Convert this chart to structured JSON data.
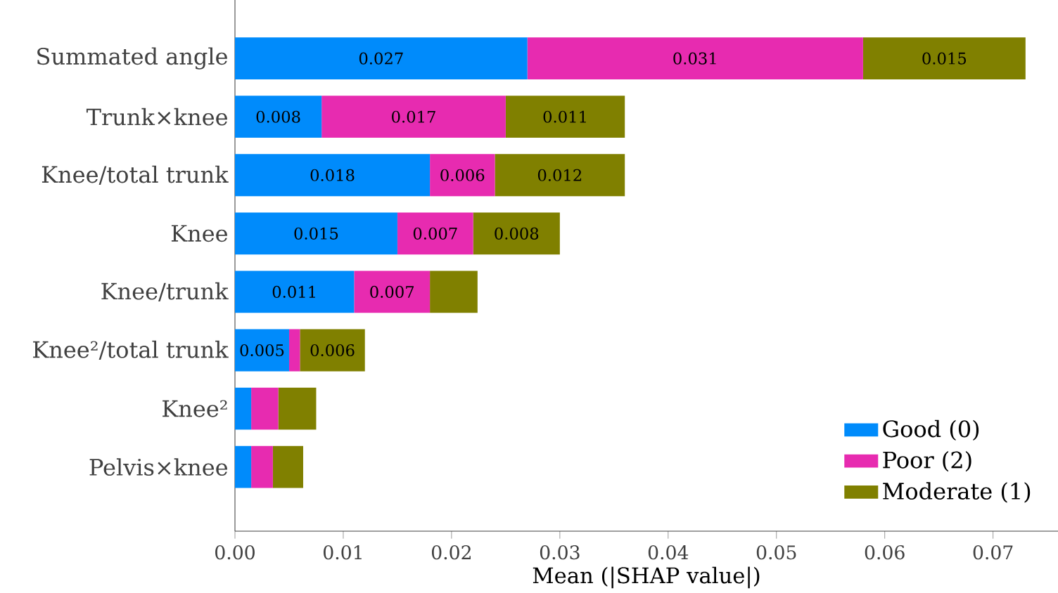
{
  "chart_data": {
    "type": "bar",
    "orientation": "horizontal",
    "stacked": true,
    "xlabel": "Mean (|SHAP value|)",
    "categories": [
      "Summated angle",
      "Trunk×knee",
      "Knee/total trunk",
      "Knee",
      "Knee/trunk",
      "Knee²/total trunk",
      "Knee²",
      "Pelvis×knee"
    ],
    "series": [
      {
        "name": "Good (0)",
        "color": "#008bfb",
        "values": [
          0.027,
          0.008,
          0.018,
          0.015,
          0.011,
          0.005,
          0.0015,
          0.0015
        ],
        "value_labels": [
          "0.027",
          "0.008",
          "0.018",
          "0.015",
          "0.011",
          "0.005",
          null,
          null
        ]
      },
      {
        "name": "Poor (2)",
        "color": "#e72bb0",
        "values": [
          0.031,
          0.017,
          0.006,
          0.007,
          0.007,
          0.001,
          0.0025,
          0.002
        ],
        "value_labels": [
          "0.031",
          "0.017",
          "0.006",
          "0.007",
          "0.007",
          null,
          null,
          null
        ]
      },
      {
        "name": "Moderate (1)",
        "color": "#808000",
        "values": [
          0.015,
          0.011,
          0.012,
          0.008,
          0.0044,
          0.006,
          0.0035,
          0.0028
        ],
        "value_labels": [
          "0.015",
          "0.011",
          "0.012",
          "0.008",
          null,
          "0.006",
          null,
          null
        ]
      }
    ],
    "xlim": [
      0,
      0.076
    ],
    "xticks": [
      {
        "value": 0,
        "label": "0.00"
      },
      {
        "value": 0.01,
        "label": "0.01"
      },
      {
        "value": 0.02,
        "label": "0.02"
      },
      {
        "value": 0.03,
        "label": "0.03"
      },
      {
        "value": 0.04,
        "label": "0.04"
      },
      {
        "value": 0.05,
        "label": "0.05"
      },
      {
        "value": 0.06,
        "label": "0.06"
      },
      {
        "value": 0.07,
        "label": "0.07"
      }
    ],
    "legend": "bottom right",
    "grid": false
  }
}
